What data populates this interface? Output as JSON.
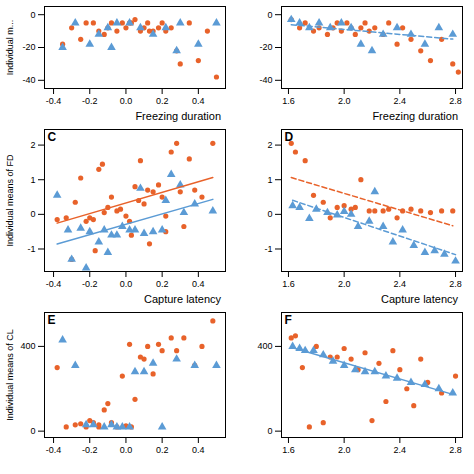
{
  "chart_data": [
    {
      "type": "scatter",
      "ylabel": "Individual m...",
      "xlim": [
        -0.45,
        0.55
      ],
      "ylim": [
        -45,
        5
      ],
      "xticks": [
        -0.4,
        -0.2,
        {
          "value": 0,
          "label": "0.0"
        },
        0.2,
        0.4
      ],
      "yticks": [
        -40,
        -20,
        0
      ],
      "grid": false,
      "series": [
        {
          "color": "#E8622A",
          "marker": "circle",
          "x": [
            -0.3,
            -0.22,
            -0.18,
            -0.15,
            -0.12,
            -0.1,
            -0.08,
            -0.05,
            -0.02,
            0.0,
            0.02,
            0.05,
            0.08,
            0.1,
            0.12,
            0.15,
            0.18,
            0.2,
            0.22,
            0.25,
            0.28,
            0.3,
            0.35,
            0.4,
            0.45,
            0.5,
            -0.25,
            -0.35,
            0.03,
            0.13
          ],
          "values": [
            -8,
            -5,
            -5,
            -10,
            -12,
            -8,
            -5,
            -10,
            -5,
            -8,
            -5,
            -3,
            -10,
            -8,
            -5,
            -10,
            -8,
            -5,
            -10,
            -8,
            -22,
            -30,
            -5,
            -28,
            -10,
            -38,
            -15,
            -18,
            -5,
            -10
          ]
        },
        {
          "color": "#5B9BD5",
          "marker": "triangle",
          "x": [
            -0.28,
            -0.2,
            -0.15,
            -0.1,
            -0.05,
            0.02,
            0.08,
            0.15,
            0.22,
            0.3,
            0.4,
            0.5,
            -0.35,
            -0.08,
            0.28
          ],
          "values": [
            -5,
            -18,
            -12,
            -8,
            -5,
            -5,
            -8,
            -12,
            -8,
            -5,
            -18,
            -5,
            -20,
            -20,
            -22
          ]
        }
      ]
    },
    {
      "type": "scatter",
      "xlim": [
        1.55,
        2.85
      ],
      "ylim": [
        -45,
        5
      ],
      "xticks": [
        1.6,
        {
          "value": 2,
          "label": "2.0"
        },
        2.4,
        2.8
      ],
      "yticks": [
        -40,
        -20,
        0
      ],
      "grid": false,
      "series": [
        {
          "color": "#E8622A",
          "marker": "circle",
          "x": [
            1.62,
            1.68,
            1.72,
            1.78,
            1.82,
            1.88,
            1.92,
            1.95,
            1.98,
            2.02,
            2.05,
            2.08,
            2.12,
            2.15,
            2.18,
            2.22,
            2.28,
            2.32,
            2.38,
            2.42,
            2.48,
            2.55,
            2.62,
            2.7,
            2.78,
            2.82
          ],
          "values": [
            -3,
            -8,
            -5,
            -10,
            -8,
            -12,
            -8,
            -5,
            -10,
            -5,
            -8,
            -12,
            -8,
            -5,
            -10,
            -8,
            -12,
            -5,
            -18,
            -8,
            -15,
            -22,
            -28,
            -15,
            -30,
            -35
          ]
        },
        {
          "color": "#5B9BD5",
          "marker": "triangle",
          "line_style": "dashed",
          "x": [
            1.62,
            1.68,
            1.75,
            1.82,
            1.9,
            1.98,
            2.05,
            2.12,
            2.2,
            2.28,
            2.38,
            2.48,
            2.58,
            2.68,
            2.78
          ],
          "values": [
            -3,
            -5,
            -8,
            -5,
            -8,
            -5,
            -8,
            -18,
            -22,
            -12,
            -8,
            -12,
            -18,
            -8,
            -12
          ]
        }
      ]
    },
    {
      "type": "scatter",
      "title": "Freezing duration",
      "annotations": [
        "C"
      ],
      "ylabel": "Individual means of FD",
      "xlim": [
        -0.45,
        0.55
      ],
      "ylim": [
        -1.65,
        2.45
      ],
      "xticks": [
        -0.4,
        -0.2,
        {
          "value": 0,
          "label": "0.0"
        },
        0.2,
        0.4
      ],
      "yticks": [
        -1,
        0,
        1,
        2
      ],
      "grid": false,
      "series": [
        {
          "color": "#E8622A",
          "marker": "circle",
          "line_style": "solid",
          "x": [
            -0.38,
            -0.33,
            -0.28,
            -0.25,
            -0.22,
            -0.2,
            -0.18,
            -0.15,
            -0.13,
            -0.12,
            -0.1,
            -0.08,
            -0.05,
            -0.03,
            0.0,
            0.02,
            0.05,
            0.07,
            0.08,
            0.1,
            0.12,
            0.15,
            0.18,
            0.2,
            0.22,
            0.25,
            0.28,
            0.3,
            0.35,
            0.38,
            0.42,
            0.48,
            -0.3,
            -0.17,
            0.03,
            0.13,
            0.22,
            0.32
          ],
          "values": [
            -0.15,
            -0.1,
            0.35,
            1.05,
            -0.2,
            -0.1,
            -0.15,
            1.3,
            1.45,
            0.05,
            0.2,
            0.5,
            0.1,
            0.15,
            -0.05,
            -0.2,
            0.8,
            0.4,
            1.55,
            0.3,
            0.7,
            0.65,
            0.85,
            0.5,
            -0.05,
            1.8,
            2.05,
            0.65,
            1.6,
            0.7,
            0.5,
            2.05,
            -1.3,
            -1.05,
            -0.6,
            -0.85,
            -0.5,
            -0.35
          ]
        },
        {
          "color": "#5B9BD5",
          "marker": "triangle",
          "line_style": "solid",
          "x": [
            -0.38,
            -0.32,
            -0.25,
            -0.2,
            -0.15,
            -0.12,
            -0.08,
            -0.05,
            -0.02,
            0.02,
            0.05,
            0.1,
            0.15,
            0.2,
            0.25,
            0.3,
            0.38,
            0.48,
            -0.3,
            -0.22,
            -0.1,
            0.08,
            0.22,
            0.32
          ],
          "values": [
            0.55,
            -0.45,
            -0.4,
            -0.5,
            -0.8,
            -0.45,
            -0.6,
            -0.6,
            -0.35,
            -0.45,
            -0.45,
            -0.55,
            -0.5,
            -0.45,
            1.15,
            0.85,
            0.3,
            0.1,
            -1.3,
            -1.55,
            -1.1,
            0.75,
            0.4,
            0.05
          ]
        }
      ]
    },
    {
      "type": "scatter",
      "title": "Freezing duration",
      "annotations": [
        "D"
      ],
      "xlim": [
        1.55,
        2.85
      ],
      "ylim": [
        -1.65,
        2.45
      ],
      "xticks": [
        1.6,
        {
          "value": 2,
          "label": "2.0"
        },
        2.4,
        2.8
      ],
      "yticks": [
        -1,
        0,
        1,
        2
      ],
      "grid": false,
      "series": [
        {
          "color": "#E8622A",
          "marker": "circle",
          "line_style": "dashed",
          "x": [
            1.62,
            1.65,
            1.72,
            1.78,
            1.85,
            1.9,
            1.95,
            2.0,
            2.05,
            2.08,
            2.12,
            2.18,
            2.22,
            2.28,
            2.32,
            2.38,
            2.42,
            2.48,
            2.55,
            2.62,
            2.7,
            2.78
          ],
          "values": [
            2.05,
            1.8,
            1.55,
            0.55,
            0.35,
            -0.1,
            0.2,
            0.25,
            0.15,
            0.2,
            1.0,
            0.1,
            0.1,
            0.1,
            0.15,
            -0.1,
            0.1,
            0.15,
            0.1,
            0.05,
            0.1,
            0.1
          ]
        },
        {
          "color": "#5B9BD5",
          "marker": "triangle",
          "line_style": "dashed",
          "x": [
            1.63,
            1.68,
            1.75,
            1.8,
            1.88,
            1.95,
            2.0,
            2.05,
            2.1,
            2.18,
            2.22,
            2.28,
            2.35,
            2.42,
            2.5,
            2.58,
            2.65,
            2.72,
            2.8
          ],
          "values": [
            0.25,
            0.2,
            -0.12,
            0.15,
            0.05,
            -0.02,
            0.08,
            0.0,
            -0.35,
            -0.2,
            0.65,
            -0.35,
            -0.8,
            -0.45,
            -0.9,
            -1.1,
            -1.05,
            -1.15,
            -1.35
          ]
        }
      ]
    },
    {
      "type": "scatter",
      "title": "Capture latency",
      "annotations": [
        "E"
      ],
      "ylabel": "Individual means of CL",
      "xlim": [
        -0.45,
        0.55
      ],
      "ylim": [
        -30,
        560
      ],
      "xticks": [
        -0.4,
        -0.2,
        {
          "value": 0,
          "label": "0.0"
        },
        0.2,
        0.4
      ],
      "yticks": [
        0,
        400
      ],
      "grid": false,
      "series": [
        {
          "color": "#E8622A",
          "marker": "circle",
          "x": [
            -0.38,
            -0.33,
            -0.28,
            -0.22,
            -0.2,
            -0.18,
            -0.15,
            -0.12,
            -0.1,
            -0.08,
            -0.05,
            -0.02,
            0.0,
            0.02,
            0.05,
            0.08,
            0.1,
            0.12,
            0.15,
            0.18,
            0.2,
            0.25,
            0.28,
            0.32,
            0.38,
            0.42,
            0.48,
            -0.25,
            -0.15,
            0.03
          ],
          "values": [
            300,
            20,
            30,
            20,
            50,
            40,
            20,
            100,
            130,
            40,
            20,
            260,
            25,
            410,
            150,
            350,
            340,
            400,
            270,
            410,
            380,
            440,
            380,
            440,
            310,
            400,
            520,
            35,
            30,
            20
          ]
        },
        {
          "color": "#5B9BD5",
          "marker": "triangle",
          "x": [
            -0.35,
            -0.28,
            -0.22,
            -0.18,
            -0.12,
            -0.08,
            -0.05,
            -0.02,
            0.02,
            0.05,
            0.1,
            0.15,
            0.2,
            0.28,
            0.38,
            0.5
          ],
          "values": [
            430,
            310,
            30,
            30,
            20,
            30,
            20,
            20,
            20,
            280,
            280,
            320,
            20,
            340,
            310,
            310
          ]
        }
      ]
    },
    {
      "type": "scatter",
      "title": "Capture latency",
      "annotations": [
        "F"
      ],
      "xlim": [
        1.55,
        2.85
      ],
      "ylim": [
        -30,
        560
      ],
      "xticks": [
        1.6,
        {
          "value": 2,
          "label": "2.0"
        },
        2.4,
        2.8
      ],
      "yticks": [
        0,
        400
      ],
      "grid": false,
      "series": [
        {
          "color": "#E8622A",
          "marker": "circle",
          "x": [
            1.62,
            1.65,
            1.7,
            1.75,
            1.8,
            1.85,
            1.9,
            1.95,
            2.0,
            2.05,
            2.1,
            2.15,
            2.2,
            2.25,
            2.3,
            2.35,
            2.4,
            2.45,
            2.5,
            2.55,
            2.6,
            2.7,
            2.8
          ],
          "values": [
            440,
            450,
            300,
            20,
            400,
            40,
            350,
            350,
            390,
            340,
            290,
            370,
            50,
            320,
            140,
            380,
            290,
            200,
            120,
            340,
            230,
            180,
            260
          ]
        },
        {
          "color": "#5B9BD5",
          "marker": "triangle",
          "line_style": "solid",
          "x": [
            1.63,
            1.68,
            1.72,
            1.78,
            1.85,
            1.92,
            2.0,
            2.08,
            2.15,
            2.22,
            2.3,
            2.38,
            2.48,
            2.58,
            2.68,
            2.78
          ],
          "values": [
            400,
            390,
            380,
            380,
            360,
            330,
            310,
            290,
            280,
            280,
            260,
            250,
            230,
            220,
            200,
            180
          ]
        }
      ]
    }
  ]
}
